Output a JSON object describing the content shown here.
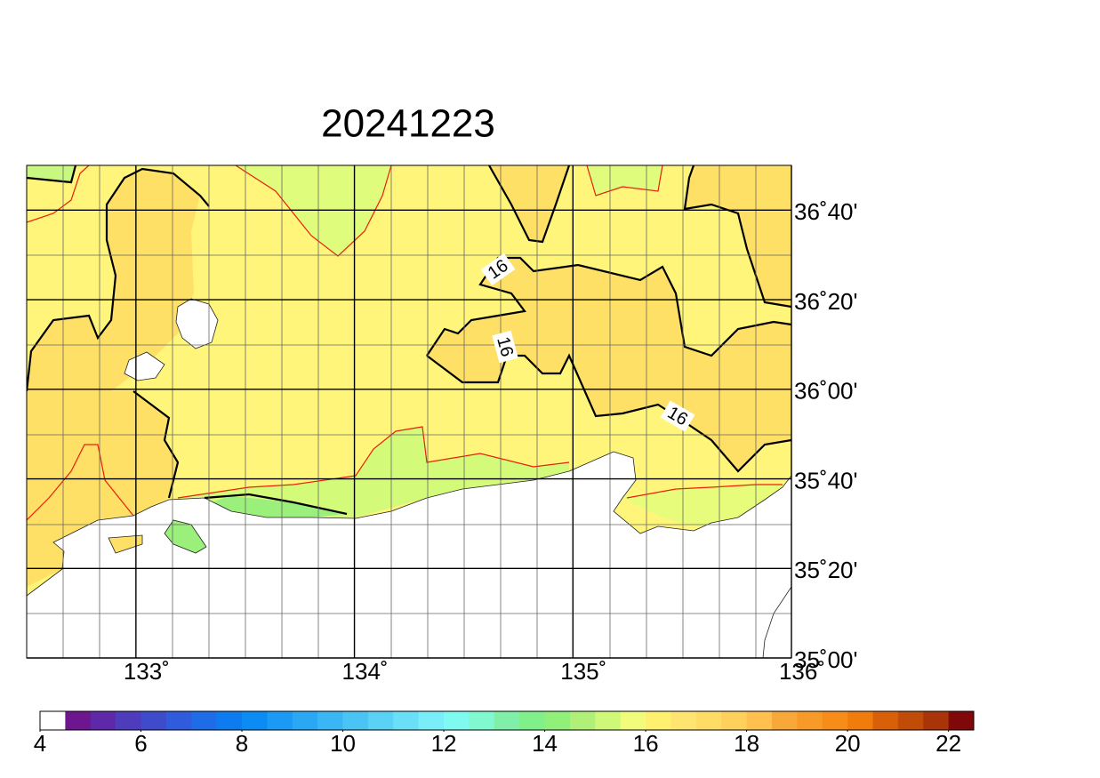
{
  "title": "20241223",
  "lon_range": [
    132.5,
    136
  ],
  "lat_range": [
    35,
    36.8333
  ],
  "lon_ticks": [
    {
      "value": 133,
      "label": "133˚"
    },
    {
      "value": 134,
      "label": "134˚"
    },
    {
      "value": 135,
      "label": "135˚"
    },
    {
      "value": 136,
      "label": "136˚"
    }
  ],
  "lat_ticks": [
    {
      "value": 36.6667,
      "label": "36˚40'"
    },
    {
      "value": 36.3333,
      "label": "36˚20'"
    },
    {
      "value": 36,
      "label": "36˚00'"
    },
    {
      "value": 35.6667,
      "label": "35˚40'"
    },
    {
      "value": 35.3333,
      "label": "35˚20'"
    },
    {
      "value": 35,
      "label": "35˚00'"
    }
  ],
  "contour_labels": [
    "16",
    "16",
    "16"
  ],
  "colorbar": {
    "range": [
      4,
      22.5
    ],
    "ticks": [
      4,
      6,
      8,
      10,
      12,
      14,
      16,
      18,
      20,
      22
    ],
    "colors": [
      "#ffffff",
      "#6e1590",
      "#5e28a8",
      "#4e3cbc",
      "#3e4ccc",
      "#2e5cdc",
      "#1e6ce8",
      "#0e7cf0",
      "#0a8cf4",
      "#1a9af4",
      "#2aa8f4",
      "#3ab6f4",
      "#4ac4f4",
      "#5ad2f6",
      "#6ae0f8",
      "#7aeef8",
      "#7ffaf0",
      "#80f8d0",
      "#80f0a8",
      "#80f088",
      "#90f078",
      "#b0f078",
      "#d0f878",
      "#f0fc7a",
      "#fff070",
      "#ffe470",
      "#ffdc66",
      "#ffd05c",
      "#ffc050",
      "#f8a838",
      "#f89a28",
      "#f88c18",
      "#f07c0c",
      "#d86008",
      "#c04c08",
      "#a83408",
      "#800808"
    ]
  }
}
